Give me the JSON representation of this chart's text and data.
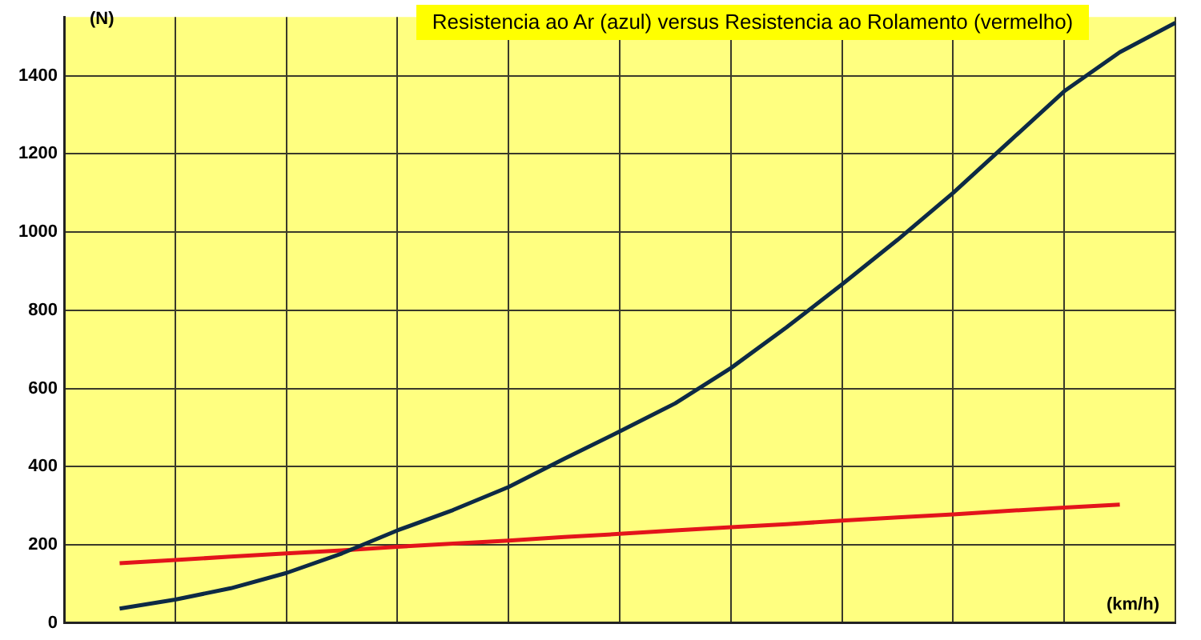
{
  "chart_data": {
    "type": "line",
    "title": "Resistencia ao Ar (azul)  versus Resistencia ao Rolamento (vermelho)",
    "xlabel": "(km/h)",
    "ylabel": "(N)",
    "categories": [
      null,
      null,
      null,
      null,
      null,
      null,
      null,
      null,
      null,
      null,
      null,
      null,
      null,
      null,
      null,
      null,
      null,
      null,
      null,
      null,
      null
    ],
    "series": [
      {
        "color": "#0d2a45",
        "values": [
          null,
          37,
          60,
          89,
          128,
          178,
          237,
          289,
          348,
          420,
          490,
          562,
          652,
          756,
          866,
          980,
          1100,
          1230,
          1360,
          1460,
          1535
        ]
      },
      {
        "color": "#e3141b",
        "values": [
          null,
          153,
          161,
          170,
          178,
          186,
          195,
          203,
          211,
          220,
          228,
          237,
          245,
          253,
          262,
          270,
          278,
          287,
          295,
          303,
          null
        ]
      }
    ],
    "ylim": [
      0,
      1550
    ],
    "yticks": [
      0,
      200,
      400,
      600,
      800,
      1000,
      1200,
      1400
    ],
    "grid": true,
    "tick_labels": "y",
    "marker": "none",
    "line_style": "solid"
  }
}
